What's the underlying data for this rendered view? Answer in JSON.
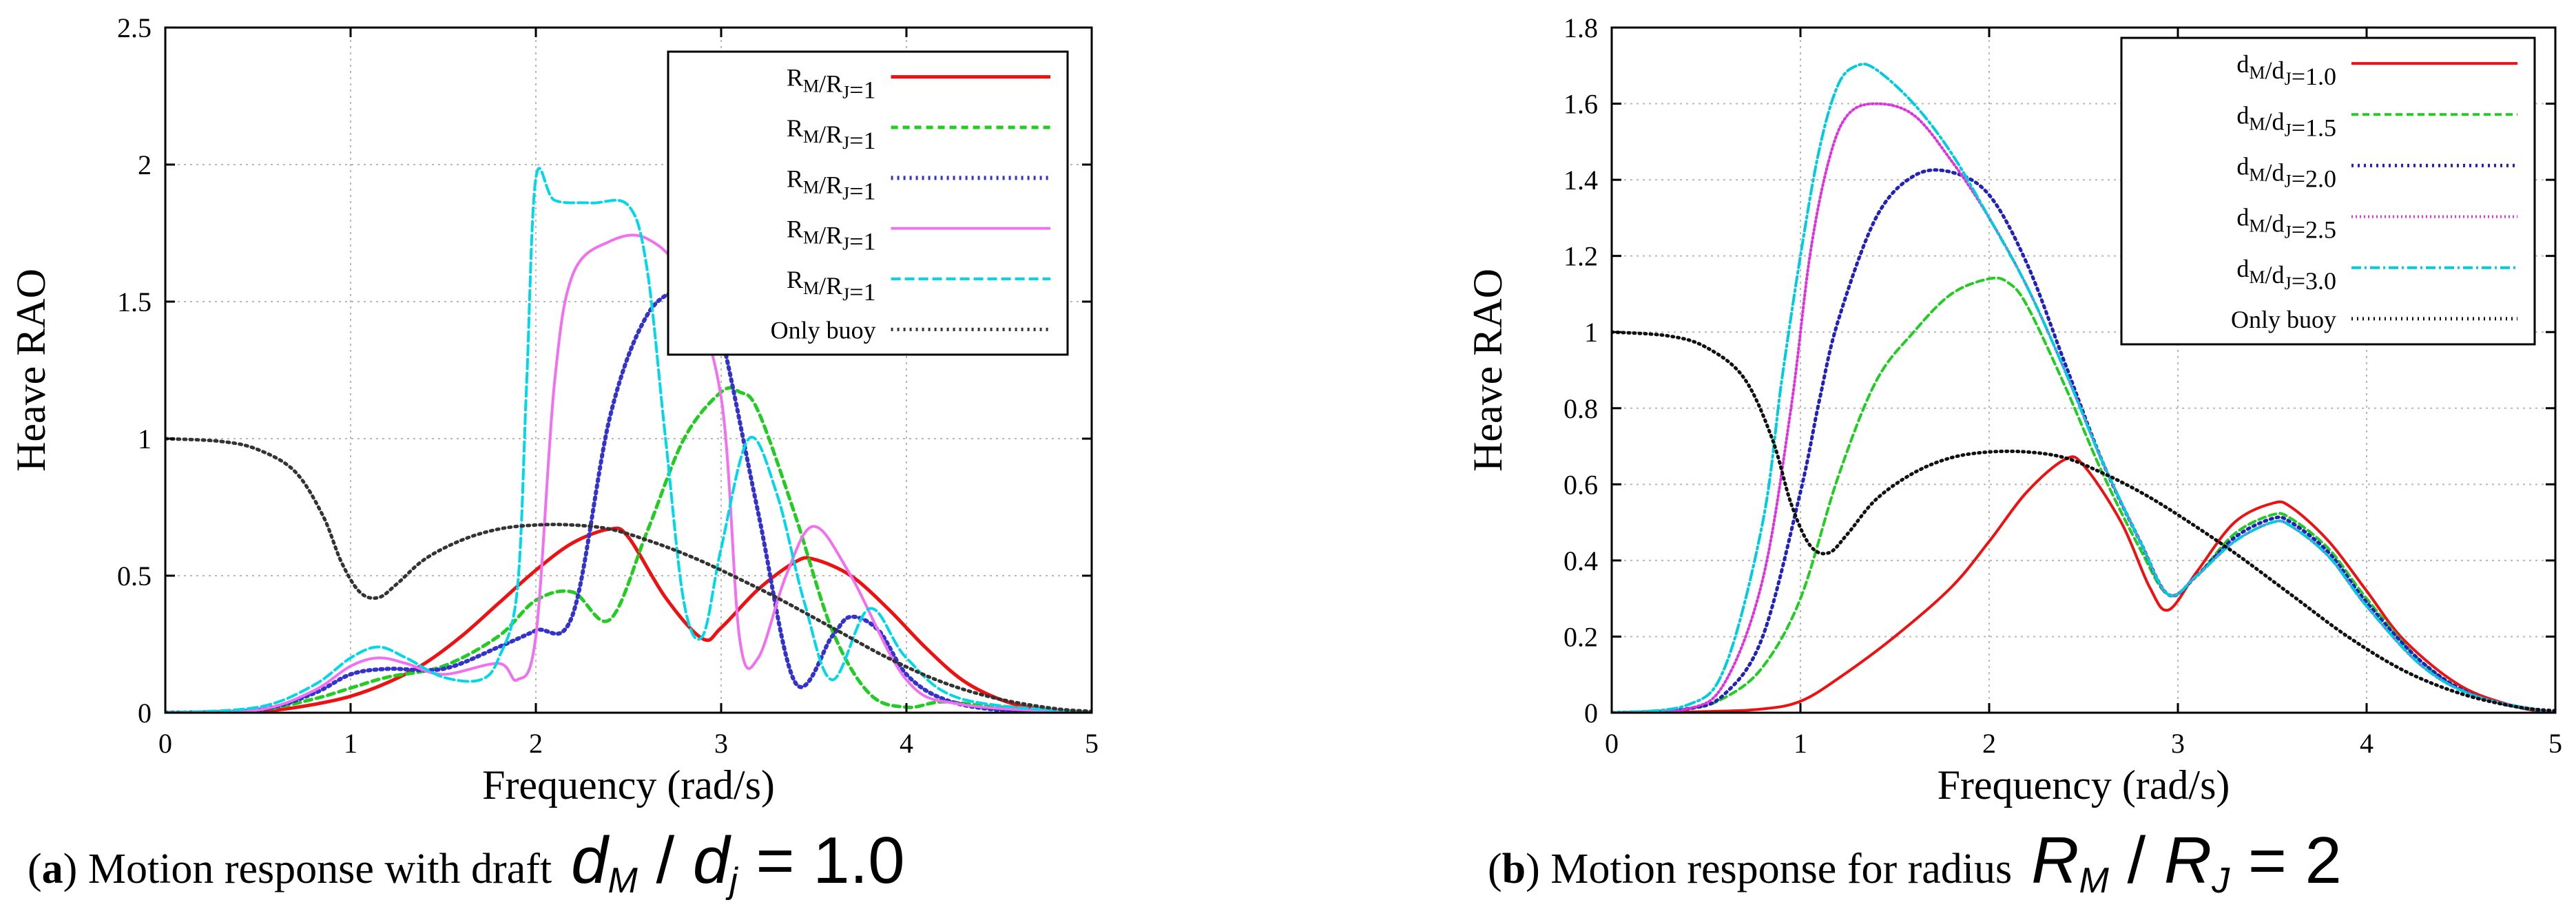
{
  "chart_data": [
    {
      "id": "a",
      "type": "line",
      "title": "",
      "xlabel": "Frequency (rad/s)",
      "ylabel": "Heave RAO",
      "xlim": [
        0,
        5
      ],
      "ylim": [
        0,
        2.5
      ],
      "xticks": [
        "0",
        "1",
        "2",
        "3",
        "4",
        "5"
      ],
      "yticks": [
        "0",
        "0.5",
        "1",
        "1.5",
        "2",
        "2.5"
      ],
      "grid": true,
      "legend_position": "top-right",
      "caption": {
        "letter": "a",
        "text": " Motion response with draft",
        "math": {
          "var1": "d",
          "sub1": "M",
          "slash": " / ",
          "var2": "d",
          "sub2": "j",
          "rhs": " = 1.0"
        }
      },
      "series": [
        {
          "name": "R_M/R_J=1",
          "label_main": "R",
          "label_sub1": "M",
          "label_mid": "/R",
          "label_sub2": "J",
          "label_tail": "=1",
          "color": "#ee1111",
          "dash": "",
          "width": 5,
          "x": [
            0,
            0.4,
            0.6,
            0.8,
            1.0,
            1.2,
            1.4,
            1.6,
            1.8,
            2.0,
            2.2,
            2.4,
            2.5,
            2.7,
            2.9,
            3.0,
            3.2,
            3.4,
            3.5,
            3.7,
            3.9,
            4.1,
            4.3,
            4.5,
            4.7,
            5.0
          ],
          "y": [
            0,
            0.002,
            0.01,
            0.03,
            0.06,
            0.11,
            0.18,
            0.28,
            0.4,
            0.52,
            0.62,
            0.67,
            0.64,
            0.42,
            0.27,
            0.31,
            0.45,
            0.55,
            0.56,
            0.5,
            0.38,
            0.24,
            0.12,
            0.05,
            0.015,
            0
          ]
        },
        {
          "name": "R_M/R_J=1",
          "label_main": "R",
          "label_sub1": "M",
          "label_mid": "/R",
          "label_sub2": "J",
          "label_tail": "=1",
          "color": "#22cc22",
          "dash": "10 7",
          "width": 5,
          "x": [
            0,
            0.5,
            0.8,
            1.0,
            1.2,
            1.5,
            1.8,
            2.0,
            2.2,
            2.4,
            2.6,
            2.8,
            3.0,
            3.1,
            3.2,
            3.4,
            3.6,
            3.8,
            4.0,
            4.2,
            4.5,
            5.0
          ],
          "y": [
            0,
            0.01,
            0.05,
            0.09,
            0.13,
            0.17,
            0.28,
            0.41,
            0.44,
            0.34,
            0.66,
            1.0,
            1.17,
            1.17,
            1.1,
            0.72,
            0.3,
            0.07,
            0.02,
            0.04,
            0.02,
            0
          ]
        },
        {
          "name": "R_M/R_J=1",
          "label_main": "R",
          "label_sub1": "M",
          "label_mid": "/R",
          "label_sub2": "J",
          "label_tail": "=1",
          "color": "#3333cc",
          "dash": "3 6",
          "width": 6,
          "x": [
            0,
            0.5,
            0.8,
            1.0,
            1.2,
            1.5,
            1.8,
            2.0,
            2.2,
            2.4,
            2.6,
            2.8,
            2.9,
            3.0,
            3.2,
            3.4,
            3.6,
            3.7,
            3.85,
            4.0,
            4.2,
            4.5,
            5.0
          ],
          "y": [
            0,
            0.01,
            0.07,
            0.14,
            0.16,
            0.16,
            0.24,
            0.3,
            0.36,
            1.08,
            1.45,
            1.55,
            1.53,
            1.38,
            0.73,
            0.11,
            0.28,
            0.35,
            0.3,
            0.14,
            0.05,
            0.01,
            0
          ]
        },
        {
          "name": "R_M/R_J=1",
          "label_main": "R",
          "label_sub1": "M",
          "label_mid": "/R",
          "label_sub2": "J",
          "label_tail": "=1",
          "color": "#f070f0",
          "dash": "",
          "width": 4,
          "x": [
            0,
            0.5,
            0.8,
            1.0,
            1.15,
            1.3,
            1.5,
            1.8,
            1.9,
            2.0,
            2.1,
            2.2,
            2.4,
            2.6,
            2.8,
            3.0,
            3.1,
            3.2,
            3.35,
            3.5,
            3.7,
            4.0,
            4.3,
            5.0
          ],
          "y": [
            0,
            0.01,
            0.08,
            0.17,
            0.2,
            0.18,
            0.14,
            0.18,
            0.12,
            0.28,
            1.2,
            1.6,
            1.72,
            1.73,
            1.58,
            1.15,
            0.27,
            0.2,
            0.5,
            0.68,
            0.5,
            0.12,
            0.03,
            0
          ]
        },
        {
          "name": "R_M/R_J=1",
          "label_main": "R",
          "label_sub1": "M",
          "label_mid": "/R",
          "label_sub2": "J",
          "label_tail": "=1",
          "color": "#00d8e8",
          "dash": "14 6",
          "width": 4,
          "x": [
            0,
            0.5,
            0.8,
            1.0,
            1.15,
            1.3,
            1.5,
            1.7,
            1.8,
            1.9,
            1.95,
            2.0,
            2.1,
            2.3,
            2.5,
            2.6,
            2.7,
            2.8,
            2.9,
            3.0,
            3.15,
            3.3,
            3.45,
            3.6,
            3.8,
            4.0,
            4.3,
            5.0
          ],
          "y": [
            0,
            0.02,
            0.1,
            0.2,
            0.24,
            0.2,
            0.13,
            0.12,
            0.2,
            0.45,
            1.2,
            1.95,
            1.87,
            1.86,
            1.85,
            1.62,
            1.0,
            0.4,
            0.28,
            0.6,
            1.0,
            0.8,
            0.4,
            0.12,
            0.38,
            0.2,
            0.05,
            0
          ]
        },
        {
          "name": "Only buoy",
          "label_main": "Only buoy",
          "label_sub1": "",
          "label_mid": "",
          "label_sub2": "",
          "label_tail": "",
          "color": "#333333",
          "dash": "3 6",
          "width": 5,
          "x": [
            0,
            0.3,
            0.5,
            0.7,
            0.85,
            0.95,
            1.05,
            1.15,
            1.25,
            1.4,
            1.6,
            1.8,
            2.0,
            2.2,
            2.4,
            2.6,
            2.8,
            3.0,
            3.3,
            3.6,
            3.9,
            4.2,
            4.5,
            4.8,
            5.0
          ],
          "y": [
            1.0,
            0.99,
            0.96,
            0.88,
            0.72,
            0.55,
            0.44,
            0.42,
            0.47,
            0.56,
            0.63,
            0.67,
            0.685,
            0.685,
            0.67,
            0.63,
            0.58,
            0.52,
            0.42,
            0.31,
            0.2,
            0.11,
            0.05,
            0.015,
            0.005
          ]
        }
      ]
    },
    {
      "id": "b",
      "type": "line",
      "title": "",
      "xlabel": "Frequency (rad/s)",
      "ylabel": "Heave RAO",
      "xlim": [
        0,
        5
      ],
      "ylim": [
        0,
        1.8
      ],
      "xticks": [
        "0",
        "1",
        "2",
        "3",
        "4",
        "5"
      ],
      "yticks": [
        "0",
        "0.2",
        "0.4",
        "0.6",
        "0.8",
        "1",
        "1.2",
        "1.4",
        "1.6",
        "1.8"
      ],
      "grid": true,
      "legend_position": "top-right",
      "caption": {
        "letter": "b",
        "text": " Motion response for radius",
        "math": {
          "var1": "R",
          "sub1": "M",
          "slash": " / ",
          "var2": "R",
          "sub2": "J",
          "rhs": " = 2"
        }
      },
      "series": [
        {
          "name": "d_M/d_J=1.0",
          "label_main": "d",
          "label_sub1": "M",
          "label_mid": "/d",
          "label_sub2": "J",
          "label_tail": "=1.0",
          "color": "#ee1111",
          "dash": "",
          "width": 4,
          "x": [
            0,
            0.5,
            0.8,
            1.0,
            1.2,
            1.5,
            1.8,
            2.0,
            2.2,
            2.4,
            2.5,
            2.7,
            2.85,
            2.95,
            3.1,
            3.3,
            3.5,
            3.6,
            3.8,
            4.0,
            4.2,
            4.5,
            4.8,
            5.0
          ],
          "y": [
            0,
            0.003,
            0.01,
            0.03,
            0.09,
            0.2,
            0.33,
            0.45,
            0.58,
            0.665,
            0.65,
            0.5,
            0.33,
            0.27,
            0.37,
            0.5,
            0.55,
            0.54,
            0.45,
            0.32,
            0.19,
            0.07,
            0.015,
            0
          ]
        },
        {
          "name": "d_M/d_J=1.5",
          "label_main": "d",
          "label_sub1": "M",
          "label_mid": "/d",
          "label_sub2": "J",
          "label_tail": "=1.5",
          "color": "#22cc22",
          "dash": "10 6",
          "width": 4,
          "x": [
            0,
            0.4,
            0.6,
            0.8,
            1.0,
            1.2,
            1.4,
            1.6,
            1.8,
            2.0,
            2.1,
            2.2,
            2.4,
            2.6,
            2.8,
            2.95,
            3.1,
            3.3,
            3.5,
            3.6,
            3.8,
            4.0,
            4.3,
            4.6,
            5.0
          ],
          "y": [
            0,
            0.01,
            0.04,
            0.12,
            0.3,
            0.62,
            0.87,
            1.0,
            1.1,
            1.14,
            1.13,
            1.07,
            0.86,
            0.63,
            0.43,
            0.31,
            0.36,
            0.47,
            0.52,
            0.51,
            0.43,
            0.3,
            0.13,
            0.04,
            0
          ]
        },
        {
          "name": "d_M/d_J=2.0",
          "label_main": "d",
          "label_sub1": "M",
          "label_mid": "/d",
          "label_sub2": "J",
          "label_tail": "=2.0",
          "color": "#2222bb",
          "dash": "3 6",
          "width": 5,
          "x": [
            0,
            0.4,
            0.6,
            0.8,
            1.0,
            1.1,
            1.2,
            1.4,
            1.6,
            1.8,
            2.0,
            2.2,
            2.4,
            2.6,
            2.8,
            2.95,
            3.1,
            3.3,
            3.5,
            3.6,
            3.8,
            4.0,
            4.3,
            4.6,
            5.0
          ],
          "y": [
            0,
            0.01,
            0.05,
            0.2,
            0.58,
            0.82,
            1.03,
            1.3,
            1.41,
            1.42,
            1.36,
            1.18,
            0.92,
            0.66,
            0.45,
            0.31,
            0.36,
            0.46,
            0.51,
            0.5,
            0.42,
            0.29,
            0.13,
            0.04,
            0
          ]
        },
        {
          "name": "d_M/d_J=2.5",
          "label_main": "d",
          "label_sub1": "M",
          "label_mid": "/d",
          "label_sub2": "J",
          "label_tail": "=2.5",
          "color": "#dd33dd",
          "dash": "2 4",
          "width": 4,
          "x": [
            0,
            0.4,
            0.6,
            0.8,
            0.95,
            1.05,
            1.15,
            1.25,
            1.4,
            1.6,
            1.8,
            2.0,
            2.2,
            2.4,
            2.6,
            2.8,
            2.95,
            3.1,
            3.3,
            3.5,
            3.6,
            3.8,
            4.0,
            4.3,
            4.6,
            5.0
          ],
          "y": [
            0,
            0.01,
            0.08,
            0.35,
            0.8,
            1.2,
            1.45,
            1.57,
            1.6,
            1.57,
            1.45,
            1.3,
            1.12,
            0.9,
            0.66,
            0.45,
            0.31,
            0.36,
            0.45,
            0.5,
            0.49,
            0.41,
            0.28,
            0.12,
            0.04,
            0
          ]
        },
        {
          "name": "d_M/d_J=3.0",
          "label_main": "d",
          "label_sub1": "M",
          "label_mid": "/d",
          "label_sub2": "J",
          "label_tail": "=3.0",
          "color": "#00ccdd",
          "dash": "14 5 3 5",
          "width": 4,
          "x": [
            0,
            0.4,
            0.6,
            0.8,
            0.9,
            1.0,
            1.1,
            1.2,
            1.3,
            1.4,
            1.6,
            1.8,
            2.0,
            2.2,
            2.4,
            2.6,
            2.8,
            2.95,
            3.1,
            3.3,
            3.5,
            3.6,
            3.8,
            4.0,
            4.3,
            4.6,
            5.0
          ],
          "y": [
            0,
            0.02,
            0.12,
            0.5,
            0.87,
            1.2,
            1.48,
            1.65,
            1.7,
            1.69,
            1.6,
            1.47,
            1.3,
            1.12,
            0.9,
            0.66,
            0.45,
            0.31,
            0.36,
            0.45,
            0.5,
            0.49,
            0.41,
            0.28,
            0.12,
            0.04,
            0
          ]
        },
        {
          "name": "Only buoy",
          "label_main": "Only buoy",
          "label_sub1": "",
          "label_mid": "",
          "label_sub2": "",
          "label_tail": "",
          "color": "#111111",
          "dash": "2 6",
          "width": 5,
          "x": [
            0,
            0.3,
            0.5,
            0.7,
            0.85,
            0.95,
            1.05,
            1.15,
            1.25,
            1.4,
            1.6,
            1.8,
            2.0,
            2.2,
            2.4,
            2.6,
            2.8,
            3.0,
            3.3,
            3.6,
            3.9,
            4.2,
            4.5,
            4.8,
            5.0
          ],
          "y": [
            1.0,
            0.99,
            0.96,
            0.88,
            0.72,
            0.55,
            0.44,
            0.42,
            0.47,
            0.56,
            0.63,
            0.67,
            0.685,
            0.685,
            0.67,
            0.63,
            0.58,
            0.52,
            0.42,
            0.31,
            0.2,
            0.11,
            0.05,
            0.015,
            0.005
          ]
        }
      ]
    }
  ]
}
